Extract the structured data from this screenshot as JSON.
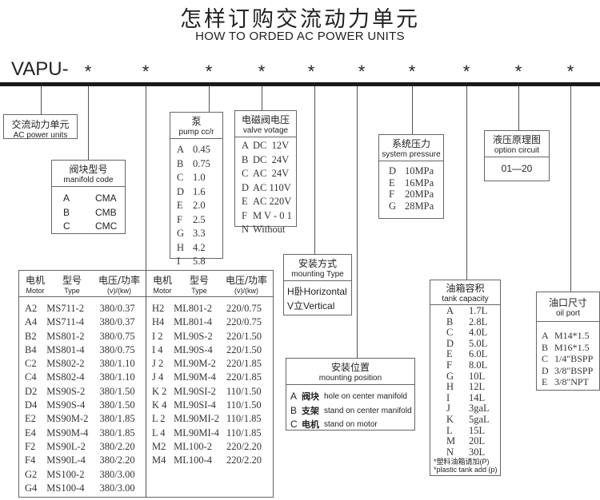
{
  "title_cn": "怎样订购交流动力单元",
  "title_en": "HOW TO ORDED AC POWER UNITS",
  "code_prefix": "VAPU-",
  "star": "*",
  "ac_unit": {
    "cn": "交流动力单元",
    "en": "AC power units"
  },
  "manifold": {
    "cn": "阀块型号",
    "en": "manifold code",
    "items": [
      [
        "A",
        "CMA"
      ],
      [
        "B",
        "CMB"
      ],
      [
        "C",
        "CMC"
      ]
    ]
  },
  "pump": {
    "cn": "泵",
    "en": "pump cc/r",
    "items": [
      [
        "A",
        "0.45"
      ],
      [
        "B",
        "0.75"
      ],
      [
        "C",
        "1.0"
      ],
      [
        "D",
        "1.6"
      ],
      [
        "E",
        "2.0"
      ],
      [
        "F",
        "2.5"
      ],
      [
        "G",
        "3.3"
      ],
      [
        "H",
        "4.2"
      ],
      [
        "I",
        "5.8"
      ]
    ]
  },
  "valve": {
    "cn": "电磁阀电压",
    "en": "valve votage",
    "items": [
      [
        "A",
        "DC  12V"
      ],
      [
        "B",
        "DC  24V"
      ],
      [
        "C",
        "AC  24V"
      ],
      [
        "D",
        "AC 110V"
      ],
      [
        "E",
        "AC 220V"
      ],
      [
        "F",
        "M V - 0 1"
      ],
      [
        "N",
        "Without"
      ]
    ]
  },
  "mount_type": {
    "cn": "安装方式",
    "en": "mounting Type",
    "items": [
      "H卧Horizontal",
      "V立Vertical"
    ]
  },
  "mount_pos": {
    "cn": "安装位置",
    "en": "mounting position",
    "items": [
      [
        "A",
        "阀块",
        "hole on center manifold"
      ],
      [
        "B",
        "支架",
        "stand on center manifold"
      ],
      [
        "C",
        "电机",
        "stand on motor"
      ]
    ]
  },
  "pressure": {
    "cn": "系统压力",
    "en": "system pressure",
    "items": [
      [
        "D",
        "10MPa"
      ],
      [
        "E",
        "16MPa"
      ],
      [
        "F",
        "20MPa"
      ],
      [
        "G",
        "28MPa"
      ]
    ]
  },
  "circuit": {
    "cn": "液压原理图",
    "en": "option circuit",
    "value": "01—20"
  },
  "tank": {
    "cn": "油箱容积",
    "en": "tank capacity",
    "items": [
      [
        "A",
        "1.7L"
      ],
      [
        "B",
        "2.8L"
      ],
      [
        "C",
        "4.0L"
      ],
      [
        "D",
        "5.0L"
      ],
      [
        "E",
        "6.0L"
      ],
      [
        "F",
        "8.0L"
      ],
      [
        "G",
        "10L"
      ],
      [
        "H",
        "12L"
      ],
      [
        "I",
        "14L"
      ],
      [
        "J",
        "3gaL"
      ],
      [
        "K",
        "5gaL"
      ],
      [
        "L",
        "15L"
      ],
      [
        "M",
        "20L"
      ],
      [
        "N",
        "30L"
      ]
    ],
    "note_cn": "*塑料油箱请加(P)",
    "note_en": "*plastic tank add (p)"
  },
  "oil_port": {
    "cn": "油口尺寸",
    "en": "oil port",
    "items": [
      [
        "A",
        "M14*1.5"
      ],
      [
        "B",
        "M16*1.5"
      ],
      [
        "C",
        "1/4\"BSPP"
      ],
      [
        "D",
        "3/8\"BSPP"
      ],
      [
        "E",
        "3/8\"NPT"
      ]
    ]
  },
  "motor": {
    "headers": [
      {
        "cn": "电机",
        "en": "Motor"
      },
      {
        "cn": "型号",
        "en": "Type"
      },
      {
        "cn": "电压/功率",
        "en": "(v)/(kw)"
      }
    ],
    "left": [
      [
        "A2",
        "MS711-2",
        "380/0.37"
      ],
      [
        "A4",
        "MS711-4",
        "380/0.37"
      ],
      [
        "B2",
        "MS801-2",
        "380/0.75"
      ],
      [
        "B4",
        "MS801-4",
        "380/0.75"
      ],
      [
        "C2",
        "MS802-2",
        "380/1.10"
      ],
      [
        "C4",
        "MS802-4",
        "380/1.10"
      ],
      [
        "D2",
        "MS90S-2",
        "380/1.50"
      ],
      [
        "D4",
        "MS90S-4",
        "380/1.50"
      ],
      [
        "E2",
        "MS90M-2",
        "380/1.85"
      ],
      [
        "E4",
        "MS90M-4",
        "380/1.85"
      ],
      [
        "F2",
        "MS90L-2",
        "380/2.20"
      ],
      [
        "F4",
        "MS90L-4",
        "380/2.20"
      ],
      [
        "G2",
        "MS100-2",
        "380/3.00"
      ],
      [
        "G4",
        "MS100-4",
        "380/3.00"
      ]
    ],
    "right": [
      [
        "H2",
        "ML801-2",
        "220/0.75"
      ],
      [
        "H4",
        "ML801-4",
        "220/0.75"
      ],
      [
        "I 2",
        "ML90S-2",
        "220/1.50"
      ],
      [
        "I 4",
        "ML90S-4",
        "220/1.50"
      ],
      [
        "J 2",
        "ML90M-2",
        "220/1.85"
      ],
      [
        "J 4",
        "ML90M-4",
        "220/1.85"
      ],
      [
        "K 2",
        "ML90SI-2",
        "110/1.50"
      ],
      [
        "K 4",
        "ML90SI-4",
        "110/1.50"
      ],
      [
        "L 2",
        "ML90MI-2",
        "110/1.85"
      ],
      [
        "L 4",
        "ML90MI-4",
        "110/1.85"
      ],
      [
        "M2",
        "ML100-2",
        "220/2.20"
      ],
      [
        "M4",
        "ML100-4",
        "220/2.20"
      ]
    ]
  }
}
